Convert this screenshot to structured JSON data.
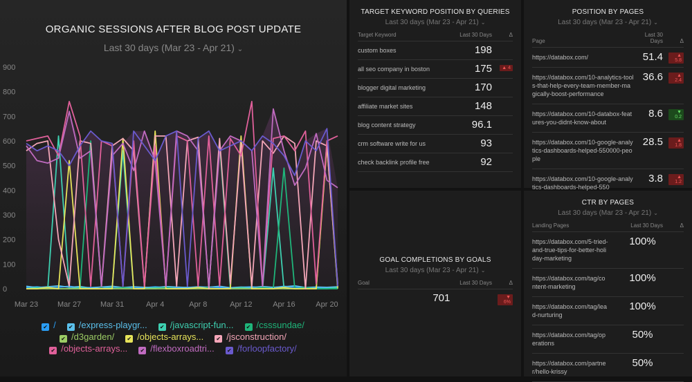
{
  "main": {
    "title": "ORGANIC SESSIONS AFTER BLOG POST UPDATE",
    "date": "Last 30 days (Mar 23 - Apr 21)"
  },
  "chart_data": {
    "type": "line",
    "title": "ORGANIC SESSIONS AFTER BLOG POST UPDATE",
    "ylim": [
      0,
      900
    ],
    "yticks": [
      0,
      100,
      200,
      300,
      400,
      500,
      600,
      700,
      800,
      900
    ],
    "xticks": [
      "Mar 23",
      "Mar 27",
      "Mar 31",
      "Apr 4",
      "Apr 8",
      "Apr 12",
      "Apr 16",
      "Apr 20"
    ],
    "x_count": 30,
    "series": [
      {
        "name": "/",
        "color": "#2a9df4",
        "values": [
          5,
          8,
          3,
          6,
          10,
          4,
          5,
          7,
          3,
          5,
          6,
          4,
          8,
          5,
          3,
          6,
          4,
          7,
          5,
          3,
          6,
          8,
          4,
          5,
          10,
          6,
          4,
          5,
          3,
          7
        ]
      },
      {
        "name": "/express-playgr...",
        "color": "#5bc0eb",
        "values": [
          10,
          5,
          8,
          12,
          6,
          9,
          3,
          7,
          10,
          5,
          8,
          6,
          4,
          9,
          7,
          5,
          8,
          6,
          10,
          4,
          7,
          5,
          9,
          6,
          8,
          12,
          5,
          7,
          6,
          8
        ]
      },
      {
        "name": "/javascript-fun...",
        "color": "#3ecfb0",
        "values": [
          0,
          5,
          0,
          620,
          0,
          5,
          0,
          0,
          5,
          560,
          0,
          0,
          5,
          0,
          0,
          0,
          5,
          0,
          0,
          0,
          5,
          0,
          0,
          490,
          0,
          0,
          5,
          0,
          0,
          5
        ]
      },
      {
        "name": "/csssundae/",
        "color": "#1fb57a",
        "values": [
          0,
          0,
          5,
          0,
          0,
          0,
          600,
          0,
          0,
          5,
          0,
          0,
          0,
          5,
          0,
          0,
          0,
          5,
          590,
          0,
          0,
          0,
          5,
          0,
          490,
          0,
          5,
          0,
          0,
          0
        ]
      },
      {
        "name": "/d3garden/",
        "color": "#9ccc65",
        "values": [
          0,
          0,
          0,
          0,
          0,
          0,
          0,
          0,
          0,
          0,
          0,
          0,
          0,
          0,
          0,
          0,
          0,
          0,
          0,
          0,
          0,
          0,
          0,
          0,
          0,
          0,
          0,
          0,
          600,
          0
        ]
      },
      {
        "name": "/objects-arrays...",
        "color": "#e6e35a",
        "values": [
          0,
          0,
          5,
          0,
          520,
          0,
          0,
          0,
          0,
          610,
          0,
          0,
          640,
          0,
          0,
          0,
          5,
          0,
          0,
          0,
          620,
          0,
          0,
          0,
          5,
          0,
          0,
          0,
          580,
          5
        ]
      },
      {
        "name": "/jsconstruction/",
        "color": "#f4a6b8",
        "values": [
          560,
          590,
          600,
          200,
          10,
          600,
          590,
          10,
          580,
          610,
          560,
          10,
          620,
          620,
          10,
          600,
          615,
          0,
          610,
          20,
          590,
          10,
          600,
          550,
          620,
          590,
          0,
          600,
          580,
          20
        ]
      },
      {
        "name": "/objects-arrays...",
        "color": "#e0609a",
        "values": [
          600,
          610,
          620,
          540,
          760,
          620,
          10,
          600,
          580,
          10,
          600,
          10,
          580,
          10,
          620,
          600,
          10,
          620,
          10,
          610,
          540,
          760,
          10,
          610,
          620,
          560,
          640,
          20,
          600,
          620
        ]
      },
      {
        "name": "/flexboxroadtri...",
        "color": "#c06bc0",
        "values": [
          580,
          520,
          510,
          530,
          720,
          530,
          560,
          10,
          540,
          590,
          480,
          640,
          520,
          10,
          640,
          620,
          560,
          10,
          560,
          620,
          600,
          560,
          10,
          730,
          560,
          420,
          490,
          630,
          440,
          410
        ]
      },
      {
        "name": "/forloopfactory/",
        "color": "#6a5acd",
        "values": [
          590,
          560,
          580,
          560,
          500,
          580,
          640,
          600,
          590,
          10,
          640,
          580,
          520,
          620,
          640,
          10,
          610,
          640,
          560,
          580,
          600,
          560,
          620,
          590,
          540,
          460,
          600,
          560,
          650,
          10
        ]
      }
    ]
  },
  "keywords": {
    "title": "TARGET KEYWORD POSITION BY QUERIES",
    "date": "Last 30 days (Mar 23 - Apr 21)",
    "col1": "Target Keyword",
    "col2": "Last 30 Days",
    "col3": "Δ",
    "rows": [
      {
        "k": "custom boxes",
        "v": "198",
        "d": ""
      },
      {
        "k": "all seo company in boston",
        "v": "175",
        "d": "▲ 4"
      },
      {
        "k": "blogger digital marketing",
        "v": "170",
        "d": ""
      },
      {
        "k": "affiliate market sites",
        "v": "148",
        "d": ""
      },
      {
        "k": "blog content strategy",
        "v": "96.1",
        "d": ""
      },
      {
        "k": "crm software write for us",
        "v": "93",
        "d": ""
      },
      {
        "k": "check backlink profile free",
        "v": "92",
        "d": ""
      }
    ]
  },
  "goals": {
    "title": "GOAL COMPLETIONS BY GOALS",
    "date": "Last 30 days (Mar 23 - Apr 21)",
    "col1": "Goal",
    "col2": "Last 30 Days",
    "col3": "Δ",
    "rows": [
      {
        "k": "",
        "v": "701",
        "d": "▼ 6%"
      }
    ]
  },
  "positions": {
    "title": "POSITION BY PAGES",
    "date": "Last 30 days (Mar 23 - Apr 21)",
    "col1": "Page",
    "col2": "Last 30 Days",
    "col3": "Δ",
    "rows": [
      {
        "k": "https://databox.com/",
        "v": "51.4",
        "d": "▲ 5.8",
        "dir": "up"
      },
      {
        "k": "https://databox.com/10-analytics-tools-that-help-every-team-member-magically-boost-performance",
        "v": "36.6",
        "d": "▲ 2.4",
        "dir": "up"
      },
      {
        "k": "https://databox.com/10-databox-features-you-didnt-know-about",
        "v": "8.6",
        "d": "▼ 0.2",
        "dir": "dn"
      },
      {
        "k": "https://databox.com/10-google-analytics-dashboards-helped-550000-people",
        "v": "28.5",
        "d": "▲ 1.8",
        "dir": "up"
      },
      {
        "k": "https://databox.com/10-google-analytics-dashboards-helped-550",
        "v": "3.8",
        "d": "▲ 1.2",
        "dir": "up"
      }
    ]
  },
  "ctr": {
    "title": "CTR BY PAGES",
    "date": "Last 30 days (Mar 23 - Apr 21)",
    "col1": "Landing Pages",
    "col2": "Last 30 Days",
    "col3": "Δ",
    "rows": [
      {
        "k": "https://databox.com/5-tried-and-true-tips-for-better-holiday-marketing",
        "v": "100%"
      },
      {
        "k": "https://databox.com/tag/content-marketing",
        "v": "100%"
      },
      {
        "k": "https://databox.com/tag/lead-nurturing",
        "v": "100%"
      },
      {
        "k": "https://databox.com/tag/operations",
        "v": "50%"
      },
      {
        "k": "https://databox.com/partner/hello-krissy",
        "v": "50%"
      }
    ]
  }
}
